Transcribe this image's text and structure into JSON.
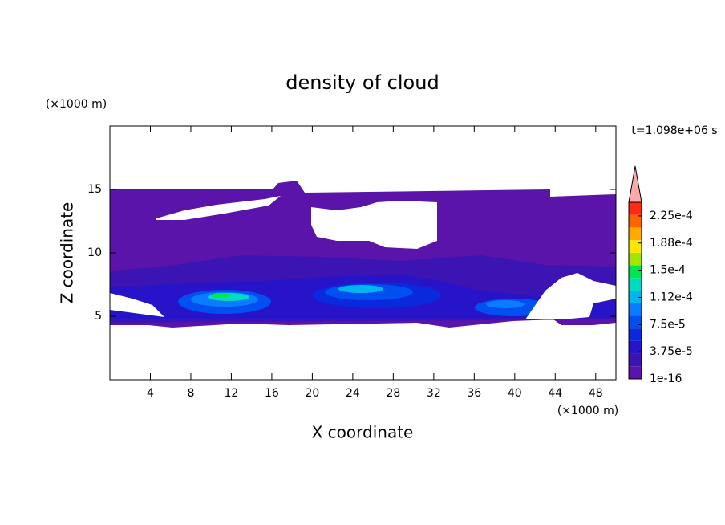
{
  "chart_data": {
    "type": "contour",
    "title": "density of cloud",
    "x_label": "X coordinate",
    "y_label": "Z coordinate",
    "x_unit": "(×1000 m)",
    "y_unit": "(×1000 m)",
    "annotation": "t=1.098e+06 s",
    "xlim": [
      0,
      50
    ],
    "xticks": [
      4,
      8,
      12,
      16,
      20,
      24,
      28,
      32,
      36,
      40,
      44,
      48
    ],
    "ylim": [
      0,
      20
    ],
    "yticks": [
      5,
      10,
      15
    ],
    "colorbar": {
      "lim": [
        1e-16,
        0.00024375
      ],
      "ticks": [
        1e-16,
        {
          "value": 3.75e-05,
          "label": "3.75e-5"
        },
        {
          "value": 7.5e-05,
          "label": "7.5e-5"
        },
        {
          "value": 0.0001125,
          "label": "1.12e-4"
        },
        {
          "value": 0.00015,
          "label": "1.5e-4"
        },
        {
          "value": 0.0001875,
          "label": "1.88e-4"
        },
        {
          "value": 0.000225,
          "label": "2.25e-4"
        }
      ],
      "colors": [
        "#5a14aa",
        "#3c14b4",
        "#2814c8",
        "#0a28dc",
        "#0050f0",
        "#0a7cff",
        "#00b4ee",
        "#00dcc0",
        "#00e650",
        "#a0e600",
        "#ffe600",
        "#ffaa00",
        "#ff6400",
        "#ff2a14"
      ],
      "extend": "max",
      "extend_color": "#ffaaaa"
    }
  }
}
